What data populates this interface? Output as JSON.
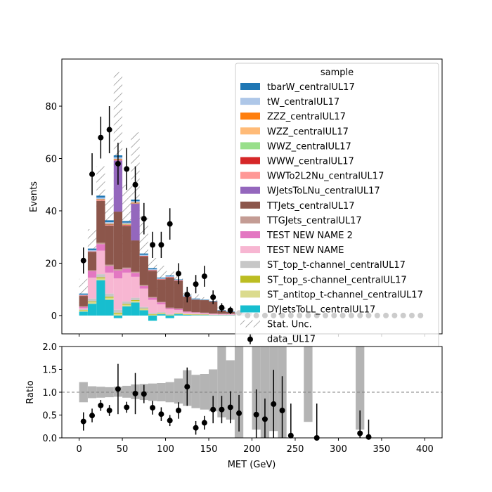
{
  "chart_data": [
    {
      "panel": "main",
      "type": "bar",
      "stacked": true,
      "xlabel": "",
      "ylabel": "Events",
      "xlim": [
        -20,
        420
      ],
      "ylim": [
        -7,
        98
      ],
      "yticks": [
        0,
        20,
        40,
        60,
        80
      ],
      "ytick_labels": [
        "0",
        "20",
        "40",
        "60",
        "80"
      ],
      "bin_edges": [
        0,
        10,
        20,
        30,
        40,
        50,
        60,
        70,
        80,
        90,
        100,
        110,
        120,
        130,
        140,
        150,
        160,
        170,
        180,
        190,
        200
      ],
      "series": [
        {
          "name": "DYJetsToLL_centralUL17",
          "color": "#17becf",
          "values": [
            1.5,
            4.5,
            13.5,
            6,
            -1,
            3.5,
            5,
            2,
            -2,
            0.5,
            -1,
            0.5,
            0.3,
            0.2,
            0.2,
            0.1,
            0.1,
            0.1,
            0.1,
            0.1
          ]
        },
        {
          "name": "ST_antitop_t-channel_centralUL17",
          "color": "#dbdb8d",
          "values": [
            0.4,
            0.6,
            0.7,
            0.8,
            0.7,
            0.6,
            0.6,
            0.4,
            0.3,
            0.3,
            0.2,
            0.2,
            0.1,
            0.1,
            0.1,
            0.1,
            0.1,
            0.1,
            0.1,
            0.1
          ]
        },
        {
          "name": "ST_top_s-channel_centralUL17",
          "color": "#bcbd22",
          "values": [
            0.2,
            0.3,
            0.4,
            0.4,
            0.4,
            0.3,
            0.3,
            0.2,
            0.2,
            0.1,
            0.1,
            0.1,
            0.1,
            0.1,
            0.1,
            0,
            0,
            0,
            0,
            0
          ]
        },
        {
          "name": "ST_top_t-channel_centralUL17",
          "color": "#c7c7c7",
          "values": [
            0.4,
            1.1,
            1.2,
            1.2,
            1.1,
            1,
            0.9,
            0.7,
            0.5,
            0.4,
            0.3,
            0.3,
            0.2,
            0.2,
            0.1,
            0.1,
            0.1,
            0.1,
            0.1,
            0.1
          ]
        },
        {
          "name": "TEST NEW NAME",
          "color": "#f7b6d2",
          "values": [
            0.3,
            8,
            9,
            8,
            12,
            11,
            8,
            7,
            5,
            3,
            1.8,
            1,
            0.5,
            0.4,
            0.3,
            0.3,
            0.2,
            0.2,
            0.1,
            0.1
          ]
        },
        {
          "name": "TEST NEW NAME 2",
          "color": "#e377c2",
          "values": [
            0.5,
            2.5,
            2.5,
            2.5,
            3,
            1.5,
            1.5,
            1,
            0.8,
            0.7,
            0.4,
            0.4,
            0.3,
            0.2,
            0.2,
            0.1,
            0.1,
            0.1,
            0.1,
            0.1
          ]
        },
        {
          "name": "TTGJets_centralUL17",
          "color": "#c49c94",
          "values": [
            0.2,
            0.3,
            0.5,
            0.5,
            0.5,
            0.4,
            0.4,
            0.3,
            0.3,
            0.2,
            0.2,
            0.2,
            0.1,
            0.1,
            0.1,
            0.1,
            0.1,
            0.1,
            0.1,
            0.1
          ]
        },
        {
          "name": "TTJets_centralUL17",
          "color": "#8c564b",
          "values": [
            4,
            7,
            16,
            15,
            22,
            16,
            12,
            11,
            10,
            8.5,
            11.5,
            10.5,
            5.5,
            4.8,
            4.8,
            4.6,
            1.2,
            0.7,
            0.4,
            0.2
          ]
        },
        {
          "name": "WJetsToLNu_centralUL17",
          "color": "#9467bd",
          "values": [
            0,
            0,
            0,
            0,
            19.5,
            0,
            14,
            0,
            0,
            0,
            0,
            0,
            0,
            0,
            0,
            0,
            0,
            0,
            0,
            0
          ]
        },
        {
          "name": "WWTo2L2Nu_centralUL17",
          "color": "#ff9896",
          "values": [
            0.1,
            0.1,
            0.2,
            0.2,
            0.2,
            0.2,
            0.1,
            0.1,
            0.1,
            0.1,
            0.1,
            0.1,
            0,
            0,
            0,
            0,
            0,
            0,
            0,
            0
          ]
        },
        {
          "name": "WWW_centralUL17",
          "color": "#d62728",
          "values": [
            0.1,
            0.1,
            0.2,
            0.2,
            0.2,
            0.2,
            0.1,
            0.1,
            0.1,
            0.1,
            0.1,
            0.1,
            0.1,
            0,
            0,
            0,
            0,
            0,
            0,
            0
          ]
        },
        {
          "name": "WWZ_centralUL17",
          "color": "#98df8a",
          "values": [
            0,
            0,
            0.1,
            0.1,
            0.1,
            0.1,
            0.1,
            0,
            0,
            0,
            0,
            0,
            0,
            0,
            0,
            0,
            0,
            0,
            0,
            0
          ]
        },
        {
          "name": "WZZ_centralUL17",
          "color": "#ffbb78",
          "values": [
            0,
            0,
            0.1,
            0.1,
            0.1,
            0.1,
            0.1,
            0,
            0,
            0,
            0,
            0,
            0,
            0,
            0,
            0,
            0,
            0,
            0,
            0
          ]
        },
        {
          "name": "ZZZ_centralUL17",
          "color": "#ff7f0e",
          "values": [
            0,
            0,
            0.1,
            0.1,
            0.1,
            0.1,
            0.1,
            0,
            0,
            0,
            0,
            0,
            0,
            0,
            0,
            0,
            0,
            0,
            0,
            0
          ]
        },
        {
          "name": "tW_centralUL17",
          "color": "#aec7e8",
          "values": [
            0.3,
            0.5,
            0.6,
            0.6,
            0.6,
            0.5,
            0.5,
            0.4,
            0.4,
            0.3,
            0.3,
            0.2,
            0.2,
            0.2,
            0.1,
            0.1,
            0.1,
            0.1,
            0.1,
            0.1
          ]
        },
        {
          "name": "tbarW_centralUL17",
          "color": "#1f77b4",
          "values": [
            0.4,
            0.6,
            0.7,
            0.7,
            0.7,
            0.6,
            0.6,
            0.5,
            0.4,
            0.3,
            0.3,
            0.2,
            0.2,
            0.2,
            0.1,
            0.1,
            0.1,
            0.1,
            0.1,
            0.1
          ]
        }
      ],
      "stat_unc": {
        "name": "Stat. Unc.",
        "low": [
          3,
          24,
          39,
          34,
          40,
          22,
          25,
          16,
          10,
          7,
          10,
          10,
          4,
          3,
          2,
          1,
          0,
          0,
          0,
          0
        ],
        "high": [
          14,
          33,
          57,
          45,
          93,
          50,
          70,
          38,
          22,
          19,
          17,
          16,
          9,
          8,
          7,
          6,
          3,
          2,
          1,
          1
        ]
      },
      "data": {
        "name": "data_UL17",
        "x": [
          5,
          15,
          25,
          35,
          45,
          55,
          65,
          75,
          85,
          95,
          105,
          115,
          125,
          135,
          145,
          155,
          165,
          175,
          185,
          195,
          205,
          215,
          225,
          235,
          245,
          255,
          265,
          275,
          285,
          295,
          305,
          315,
          325,
          335,
          345,
          355,
          365,
          375,
          385,
          395
        ],
        "y": [
          21,
          54,
          68,
          71,
          58,
          56,
          50,
          37,
          27,
          27,
          35,
          16,
          8,
          12,
          15,
          7,
          3,
          2,
          1,
          0,
          0,
          0,
          0,
          0,
          0,
          0,
          0,
          0,
          0,
          0,
          0,
          0,
          0,
          0,
          0,
          0,
          0,
          0,
          0,
          0
        ],
        "err": [
          5,
          8,
          8,
          9,
          8,
          8,
          7,
          6,
          5,
          5,
          6,
          4,
          3,
          3.5,
          4,
          2.6,
          1.7,
          1.4,
          1,
          0,
          0,
          0,
          0,
          0,
          0,
          0,
          0,
          0,
          0,
          0,
          0,
          0,
          0,
          0,
          0,
          0,
          0,
          0,
          0,
          0
        ]
      },
      "legend_title": "sample",
      "legend_placement": "upper right"
    },
    {
      "panel": "ratio",
      "type": "scatter",
      "xlabel": "MET (GeV)",
      "ylabel": "Ratio",
      "xlim": [
        -20,
        420
      ],
      "ylim": [
        0,
        2
      ],
      "xticks": [
        0,
        50,
        100,
        150,
        200,
        250,
        300,
        350,
        400
      ],
      "xtick_labels": [
        "0",
        "50",
        "100",
        "150",
        "200",
        "250",
        "300",
        "350",
        "400"
      ],
      "yticks": [
        0,
        0.5,
        1,
        1.5,
        2
      ],
      "ytick_labels": [
        "0.0",
        "0.5",
        "1.0",
        "1.5",
        "2.0"
      ],
      "reference_line": 1.0,
      "unc_band": {
        "x_edges": [
          0,
          10,
          20,
          30,
          40,
          50,
          60,
          70,
          80,
          90,
          100,
          110,
          120,
          130,
          140,
          150,
          160,
          170,
          180,
          190,
          200,
          210,
          220,
          230,
          240,
          250,
          260,
          270,
          280,
          290,
          300,
          310,
          320,
          330
        ],
        "low": [
          0.78,
          0.87,
          0.88,
          0.89,
          0.9,
          0.88,
          0.85,
          0.83,
          0.81,
          0.8,
          0.78,
          0.75,
          0.7,
          0.65,
          0.62,
          0.58,
          0.45,
          0.4,
          0.0,
          0.0,
          0.18,
          0.0,
          0.15,
          0.0,
          0.0,
          0.0,
          0.35,
          0.0,
          0.0,
          0.0,
          0.0,
          0.0,
          0.18,
          0.0
        ],
        "high": [
          1.22,
          1.13,
          1.12,
          1.11,
          1.12,
          1.14,
          1.17,
          1.18,
          1.19,
          1.2,
          1.22,
          1.3,
          1.48,
          1.38,
          1.4,
          1.5,
          2.0,
          1.7,
          2.0,
          0.0,
          2.0,
          2.0,
          2.0,
          2.0,
          0.0,
          0.0,
          2.0,
          0.0,
          0.0,
          0.0,
          0.0,
          0.0,
          2.0,
          0.0
        ]
      },
      "points": {
        "x": [
          5,
          15,
          25,
          35,
          45,
          55,
          65,
          75,
          85,
          95,
          105,
          115,
          125,
          135,
          145,
          155,
          165,
          175,
          185,
          205,
          215,
          225,
          235,
          245,
          275,
          325,
          335
        ],
        "y": [
          0.36,
          0.49,
          0.71,
          0.6,
          1.07,
          0.67,
          0.97,
          0.96,
          0.66,
          0.52,
          0.38,
          0.6,
          1.12,
          0.22,
          0.33,
          0.62,
          0.62,
          0.67,
          0.54,
          0.51,
          0.41,
          0.74,
          0.6,
          0.05,
          0.0,
          0.1,
          0.02
        ],
        "err": [
          0.2,
          0.15,
          0.12,
          0.12,
          0.55,
          0.12,
          0.45,
          0.2,
          0.15,
          0.15,
          0.12,
          0.18,
          0.42,
          0.15,
          0.15,
          0.3,
          0.3,
          0.35,
          0.4,
          0.55,
          0.45,
          0.75,
          0.75,
          0.7,
          0.75,
          0.5,
          0.38
        ]
      }
    }
  ]
}
